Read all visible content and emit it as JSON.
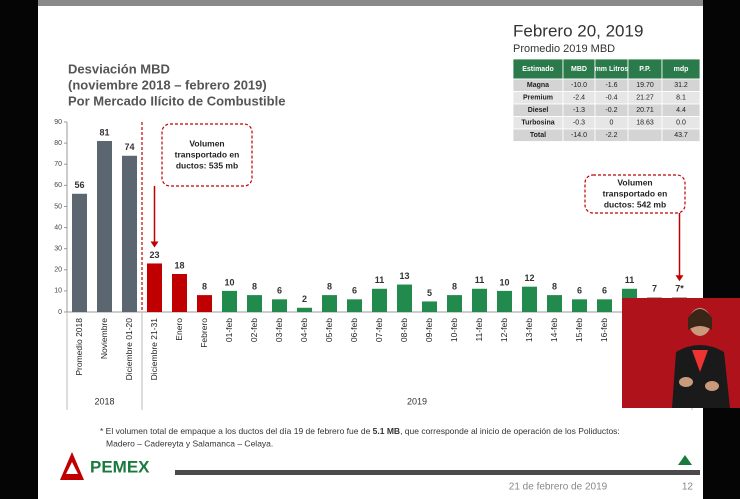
{
  "chart_data": {
    "type": "bar",
    "title": [
      "Desviación MBD",
      "(noviembre 2018 – febrero 2019)",
      "Por Mercado Ilícito de Combustible"
    ],
    "categories": [
      "Promedio 2018",
      "Noviembre",
      "Diciembre 01-20",
      "Diciembre 21-31",
      "Enero",
      "Febrero",
      "01-feb",
      "02-feb",
      "03-feb",
      "04-feb",
      "05-feb",
      "06-feb",
      "07-feb",
      "08-feb",
      "09-feb",
      "10-feb",
      "11-feb",
      "12-feb",
      "13-feb",
      "14-feb",
      "15-feb",
      "16-feb",
      null,
      null,
      null
    ],
    "values": [
      56,
      81,
      74,
      23,
      18,
      8,
      10,
      8,
      6,
      2,
      8,
      6,
      11,
      13,
      5,
      8,
      11,
      10,
      12,
      8,
      6,
      6,
      11,
      7,
      7
    ],
    "value_labels": [
      "56",
      "81",
      "74",
      "23",
      "18",
      "8",
      "10",
      "8",
      "6",
      "2",
      "8",
      "6",
      "11",
      "13",
      "5",
      "8",
      "11",
      "10",
      "12",
      "8",
      "6",
      "6",
      "11",
      "7",
      "7*"
    ],
    "colors": [
      "#5b6670",
      "#5b6670",
      "#5b6670",
      "#c00000",
      "#c00000",
      "#c00000",
      "#218a4c",
      "#218a4c",
      "#218a4c",
      "#218a4c",
      "#218a4c",
      "#218a4c",
      "#218a4c",
      "#218a4c",
      "#218a4c",
      "#218a4c",
      "#218a4c",
      "#218a4c",
      "#218a4c",
      "#218a4c",
      "#218a4c",
      "#218a4c",
      "#218a4c",
      "#9a9a9a",
      "#9a9a9a"
    ],
    "groups": [
      {
        "label": "2018",
        "count": 3
      },
      {
        "label": "2019",
        "count": 22
      }
    ],
    "annotations": [
      [
        "Volumen",
        "transportado en",
        "ductos: 535 mb"
      ],
      [
        "Volumen",
        "transportado en",
        "ductos: 542 mb"
      ]
    ],
    "ylim": [
      0,
      90
    ],
    "yticks": [
      0,
      10,
      20,
      30,
      40,
      50,
      60,
      70,
      80,
      90
    ]
  },
  "header": {
    "title": "Febrero 20, 2019",
    "subtitle": "Promedio 2019 MBD"
  },
  "table": {
    "columns": [
      "Estimado",
      "MBD",
      "mm Litros",
      "P.P.",
      "mdp"
    ],
    "rows": [
      [
        "Magna",
        "-10.0",
        "-1.6",
        "19.70",
        "31.2"
      ],
      [
        "Premium",
        "-2.4",
        "-0.4",
        "21.27",
        "8.1"
      ],
      [
        "Diesel",
        "-1.3",
        "-0.2",
        "20.71",
        "4.4"
      ],
      [
        "Turbosina",
        "-0.3",
        "0",
        "18.63",
        "0.0"
      ],
      [
        "Total",
        "-14.0",
        "-2.2",
        null,
        "43.7"
      ]
    ]
  },
  "footnote": [
    "* El volumen total de empaque a los ductos del día 19 de febrero fue de ",
    "5.1 MB",
    ", que corresponde al inicio de operación de los Poliductos:",
    "Madero – Cadereyta y Salamanca – Celaya."
  ],
  "footer": {
    "logo": "PEMEX",
    "date": "21 de febrero de 2019",
    "page": "12"
  }
}
